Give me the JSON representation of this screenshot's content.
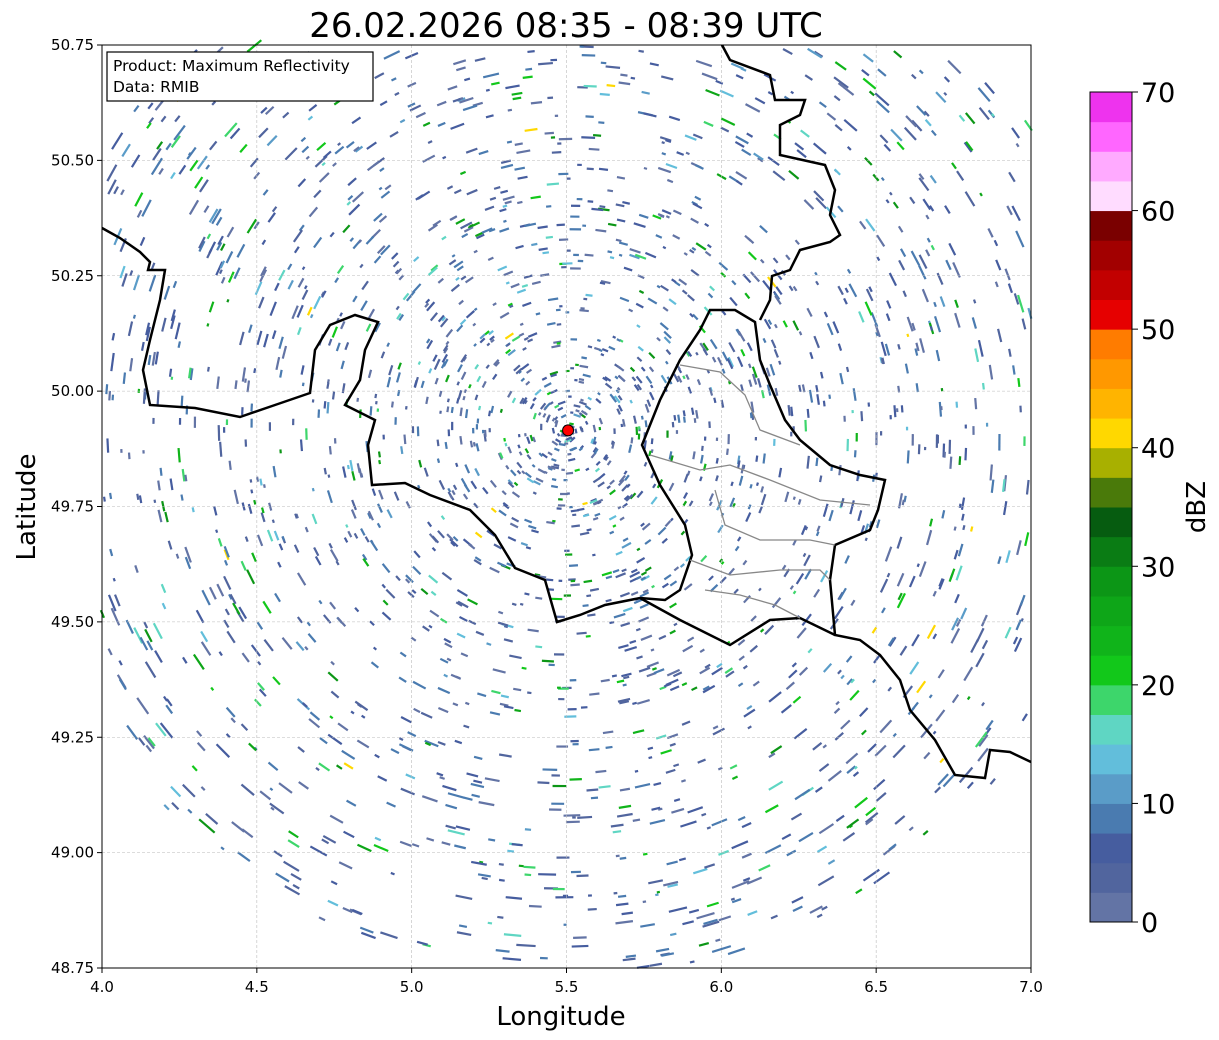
{
  "chart_data": {
    "type": "heatmap",
    "title": "26.02.2026 08:35 - 08:39 UTC",
    "xlabel": "Longitude",
    "ylabel": "Latitude",
    "xlim": [
      4.0,
      7.0
    ],
    "ylim": [
      48.75,
      50.75
    ],
    "xticks": [
      "4.0",
      "4.5",
      "5.0",
      "5.5",
      "6.0",
      "6.5",
      "7.0"
    ],
    "yticks": [
      "48.75",
      "49.00",
      "49.25",
      "49.50",
      "49.75",
      "50.00",
      "50.25",
      "50.50",
      "50.75"
    ],
    "grid": true,
    "annotation": [
      "Product: Maximum Reflectivity",
      "Data: RMIB"
    ],
    "radar_site": {
      "lon": 5.505,
      "lat": 49.915,
      "color": "#ff0000"
    },
    "colorbar": {
      "label": "dBZ",
      "range": [
        0,
        70
      ],
      "step": 2.5,
      "ticks": [
        "0",
        "10",
        "20",
        "30",
        "40",
        "50",
        "60",
        "70"
      ],
      "colors": [
        "#6374a5",
        "#51659e",
        "#465d9f",
        "#4a7bb0",
        "#5a9cc8",
        "#62bedb",
        "#5fd6c3",
        "#3dd66b",
        "#12c81a",
        "#10b41a",
        "#0ea618",
        "#0c9616",
        "#0a7c14",
        "#065c10",
        "#4a7a0a",
        "#a8b000",
        "#ffd800",
        "#ffb400",
        "#ff9800",
        "#ff7c00",
        "#e60000",
        "#c20000",
        "#a20000",
        "#7a0000",
        "#ffdcff",
        "#ffaaff",
        "#ff66ff",
        "#ee33ee"
      ]
    },
    "borders_px_note": "",
    "radar_range_km": 240
  }
}
